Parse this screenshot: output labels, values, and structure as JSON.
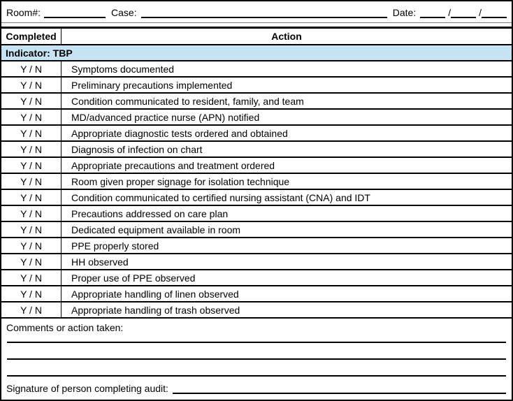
{
  "header": {
    "room_label": "Room#:",
    "case_label": "Case:",
    "date_label": "Date:",
    "date_separator": "/"
  },
  "table": {
    "header_completed": "Completed",
    "header_action": "Action",
    "indicator_label": "Indicator: TBP",
    "yn_label": "Y / N",
    "rows": [
      "Symptoms documented",
      "Preliminary precautions implemented",
      "Condition communicated to resident, family, and team",
      "MD/advanced practice nurse (APN) notified",
      "Appropriate diagnostic tests ordered and obtained",
      "Diagnosis of infection on chart",
      "Appropriate precautions and treatment ordered",
      "Room given proper signage for isolation technique",
      "Condition communicated to certified nursing assistant (CNA) and IDT",
      "Precautions addressed on care plan",
      "Dedicated equipment available in room",
      "PPE properly stored",
      "HH observed",
      "Proper use of PPE observed",
      "Appropriate handling of linen observed",
      "Appropriate handling of trash observed"
    ]
  },
  "footer": {
    "comments_label": "Comments or action taken:",
    "signature_label": "Signature of person completing audit:",
    "comment_line_count": 3
  },
  "colors": {
    "indicator_bg": "#C5E3F2",
    "border": "#000000"
  }
}
